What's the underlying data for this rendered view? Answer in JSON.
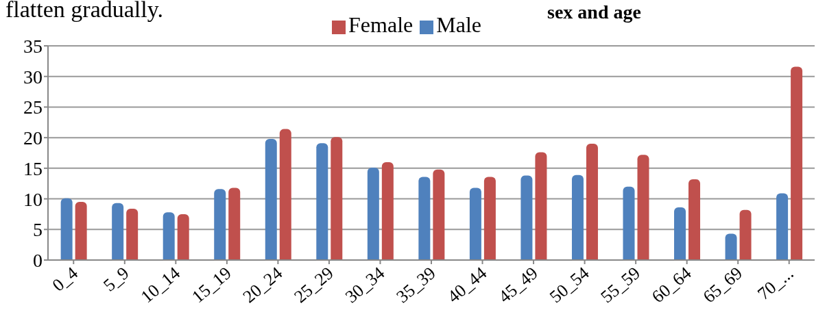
{
  "chart_data": {
    "type": "bar",
    "title": "sex and age",
    "annotations": [
      "flatten gradually."
    ],
    "categories": [
      "0_4",
      "5_9",
      "10_14",
      "15_19",
      "20_24",
      "25_29",
      "30_34",
      "35_39",
      "40_44",
      "45_49",
      "50_54",
      "55_59",
      "60_64",
      "65_69",
      "70_..."
    ],
    "series": [
      {
        "name": "Male",
        "color": "#4f81bd",
        "values": [
          10.1,
          9.3,
          7.8,
          11.6,
          19.8,
          19.1,
          15.1,
          13.6,
          11.8,
          13.8,
          13.9,
          12.0,
          8.6,
          4.3,
          10.9
        ]
      },
      {
        "name": "Female",
        "color": "#c0504d",
        "values": [
          9.5,
          8.4,
          7.5,
          11.8,
          21.4,
          20.1,
          16.0,
          14.8,
          13.6,
          17.6,
          19.0,
          17.2,
          13.2,
          8.2,
          31.6
        ]
      }
    ],
    "ylim": [
      0,
      35
    ],
    "yticks": [
      0,
      5,
      10,
      15,
      20,
      25,
      30,
      35
    ],
    "grid": "y",
    "legend": "top"
  }
}
